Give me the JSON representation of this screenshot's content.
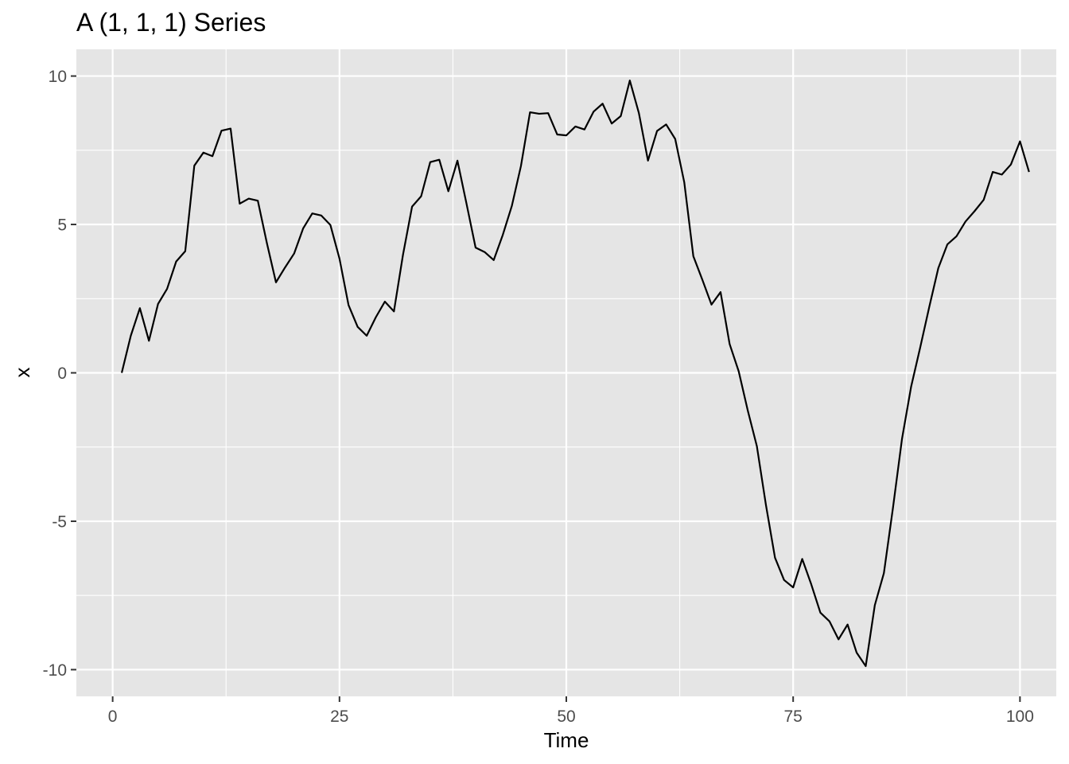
{
  "chart_data": {
    "type": "line",
    "title": "A (1, 1, 1) Series",
    "xlabel": "Time",
    "ylabel": "x",
    "xlim": [
      -4,
      104
    ],
    "ylim": [
      -10.9,
      10.9
    ],
    "x_ticks": [
      0,
      25,
      50,
      75,
      100
    ],
    "x_tick_labels": [
      "0",
      "25",
      "50",
      "75",
      "100"
    ],
    "y_ticks": [
      10,
      5,
      0,
      -5,
      -10
    ],
    "y_tick_labels": [
      "10",
      "5",
      "0",
      "-5",
      "-10"
    ],
    "grid": true,
    "colors": {
      "panel": "#e5e5e5",
      "grid": "#ffffff",
      "line": "#000000",
      "tick": "#333333"
    },
    "x": [
      1,
      2,
      3,
      4,
      5,
      6,
      7,
      8,
      9,
      10,
      11,
      12,
      13,
      14,
      15,
      16,
      17,
      18,
      19,
      20,
      21,
      22,
      23,
      24,
      25,
      26,
      27,
      28,
      29,
      30,
      31,
      32,
      33,
      34,
      35,
      36,
      37,
      38,
      39,
      40,
      41,
      42,
      43,
      44,
      45,
      46,
      47,
      48,
      49,
      50,
      51,
      52,
      53,
      54,
      55,
      56,
      57,
      58,
      59,
      60,
      61,
      62,
      63,
      64,
      65,
      66,
      67,
      68,
      69,
      70,
      71,
      72,
      73,
      74,
      75,
      76,
      77,
      78,
      79,
      80,
      81,
      82,
      83,
      84,
      85,
      86,
      87,
      88,
      89,
      90,
      91,
      92,
      93,
      94,
      95,
      96,
      97,
      98,
      99,
      100,
      101
    ],
    "series": [
      {
        "values": [
          0.0,
          1.25,
          2.18,
          1.08,
          2.32,
          2.83,
          3.75,
          4.1,
          6.98,
          7.42,
          7.3,
          8.16,
          8.23,
          5.7,
          5.87,
          5.8,
          4.37,
          3.05,
          3.55,
          4.02,
          4.87,
          5.37,
          5.3,
          4.98,
          3.85,
          2.28,
          1.55,
          1.25,
          1.87,
          2.4,
          2.07,
          3.98,
          5.6,
          5.95,
          7.1,
          7.18,
          6.12,
          7.15,
          5.7,
          4.22,
          4.07,
          3.8,
          4.65,
          5.63,
          6.97,
          8.78,
          8.73,
          8.75,
          8.03,
          8.0,
          8.3,
          8.2,
          8.8,
          9.07,
          8.4,
          8.65,
          9.85,
          8.75,
          7.15,
          8.15,
          8.37,
          7.88,
          6.42,
          3.93,
          3.13,
          2.3,
          2.72,
          0.97,
          0.05,
          -1.27,
          -2.47,
          -4.45,
          -6.23,
          -6.98,
          -7.23,
          -6.27,
          -7.13,
          -8.08,
          -8.37,
          -8.98,
          -8.48,
          -9.43,
          -9.88,
          -7.83,
          -6.75,
          -4.55,
          -2.22,
          -0.47,
          0.85,
          2.22,
          3.53,
          4.33,
          4.6,
          5.1,
          5.45,
          5.83,
          6.77,
          6.68,
          7.02,
          7.8,
          6.77
        ]
      }
    ]
  }
}
